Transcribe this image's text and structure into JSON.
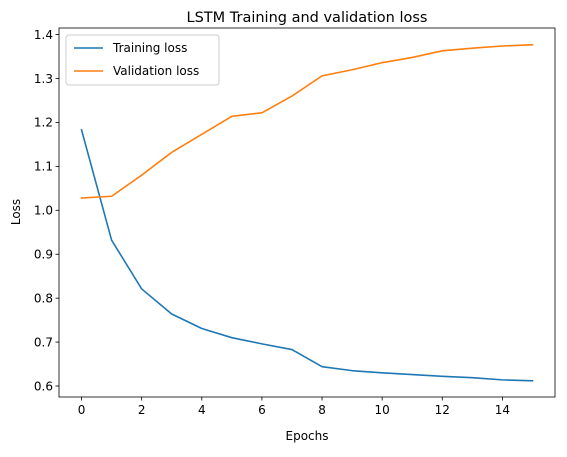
{
  "chart_data": {
    "type": "line",
    "title": "LSTM Training and validation loss",
    "xlabel": "Epochs",
    "ylabel": "Loss",
    "xlim": [
      -0.75,
      15.75
    ],
    "ylim": [
      0.575,
      1.415
    ],
    "xticks": [
      0,
      2,
      4,
      6,
      8,
      10,
      12,
      14
    ],
    "yticks": [
      0.6,
      0.7,
      0.8,
      0.9,
      1.0,
      1.1,
      1.2,
      1.3,
      1.4
    ],
    "grid": false,
    "legend_position": "top-left",
    "x": [
      0,
      1,
      2,
      3,
      4,
      5,
      6,
      7,
      8,
      9,
      10,
      11,
      12,
      13,
      14,
      15
    ],
    "series": [
      {
        "name": "Training loss",
        "color": "#1f77b4",
        "values": [
          1.183,
          0.932,
          0.821,
          0.764,
          0.731,
          0.71,
          0.696,
          0.683,
          0.644,
          0.635,
          0.63,
          0.626,
          0.622,
          0.619,
          0.614,
          0.612
        ]
      },
      {
        "name": "Validation loss",
        "color": "#ff7f0e",
        "values": [
          1.028,
          1.032,
          1.08,
          1.132,
          1.173,
          1.214,
          1.222,
          1.26,
          1.306,
          1.32,
          1.336,
          1.348,
          1.363,
          1.369,
          1.374,
          1.377
        ]
      }
    ]
  }
}
